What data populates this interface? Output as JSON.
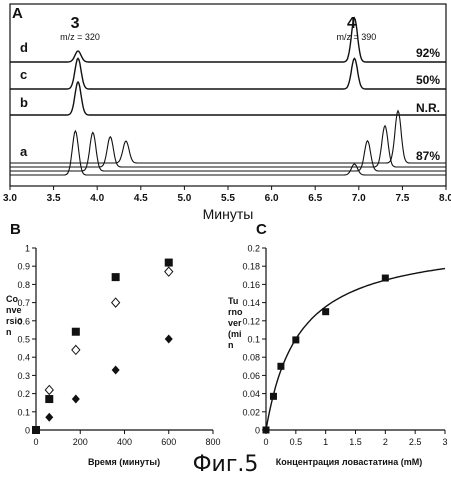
{
  "figure_caption": "Фиг.5",
  "chart_data": [
    {
      "panel": "A",
      "type": "line",
      "xlabel": "Минуты",
      "xlim": [
        3.0,
        8.0
      ],
      "x_ticks": [
        "3.0",
        "3.5",
        "4.0",
        "4.5",
        "5.0",
        "5.5",
        "6.0",
        "6.5",
        "7.0",
        "7.5",
        "8.0"
      ],
      "peak_labels": [
        {
          "label": "3",
          "mz": "m/z = 320",
          "x": 3.78
        },
        {
          "label": "4",
          "mz": "m/z = 390",
          "x": 6.95
        }
      ],
      "traces": [
        {
          "label": "d",
          "conversion": "92%",
          "peaks": [
            {
              "x": 3.78,
              "h": 0.25
            },
            {
              "x": 6.95,
              "h": 1.0
            }
          ]
        },
        {
          "label": "c",
          "conversion": "50%",
          "peaks": [
            {
              "x": 3.78,
              "h": 0.9
            },
            {
              "x": 6.95,
              "h": 0.9
            }
          ]
        },
        {
          "label": "b",
          "conversion": "N.R.",
          "peaks": [
            {
              "x": 3.78,
              "h": 1.0
            }
          ]
        },
        {
          "label": "a",
          "conversion": "87%",
          "peaks": [
            {
              "x": 3.75,
              "h": 0.8
            },
            {
              "x": 3.95,
              "h": 0.7
            },
            {
              "x": 4.15,
              "h": 0.55
            },
            {
              "x": 4.33,
              "h": 0.4
            },
            {
              "x": 6.95,
              "h": 0.2
            },
            {
              "x": 7.1,
              "h": 0.55
            },
            {
              "x": 7.3,
              "h": 0.75
            },
            {
              "x": 7.45,
              "h": 0.95
            }
          ]
        }
      ]
    },
    {
      "panel": "B",
      "type": "scatter",
      "ylabel": "Co nve rsio n",
      "xlabel": "Время (минуты)",
      "xlim": [
        0,
        800
      ],
      "ylim": [
        0,
        1
      ],
      "x_ticks": [
        "0",
        "200",
        "400",
        "600",
        "800"
      ],
      "y_ticks": [
        "0",
        "0.1",
        "0.2",
        "0.3",
        "0.4",
        "0.5",
        "0.6",
        "0.7",
        "0.8",
        "0.9",
        "1"
      ],
      "series": [
        {
          "marker": "square",
          "points": [
            [
              0,
              0.0
            ],
            [
              60,
              0.17
            ],
            [
              180,
              0.54
            ],
            [
              360,
              0.84
            ],
            [
              600,
              0.92
            ]
          ]
        },
        {
          "marker": "diamond-open",
          "points": [
            [
              60,
              0.22
            ],
            [
              180,
              0.44
            ],
            [
              360,
              0.7
            ],
            [
              600,
              0.87
            ]
          ]
        },
        {
          "marker": "diamond",
          "points": [
            [
              60,
              0.07
            ],
            [
              180,
              0.17
            ],
            [
              360,
              0.33
            ],
            [
              600,
              0.5
            ]
          ]
        }
      ]
    },
    {
      "panel": "C",
      "type": "scatter",
      "ylabel": "Tu rno ver (mi n",
      "xlabel": "Концентрация ловастатина (mM)",
      "xlim": [
        0,
        3
      ],
      "ylim": [
        0,
        0.2
      ],
      "x_ticks": [
        "0",
        "0.5",
        "1",
        "1.5",
        "2",
        "2.5",
        "3"
      ],
      "y_ticks": [
        "0",
        "0.02",
        "0.04",
        "0.06",
        "0.08",
        "0.1",
        "0.12",
        "0.14",
        "0.16",
        "0.18",
        "0.2"
      ],
      "points": [
        [
          0,
          0.0
        ],
        [
          0.125,
          0.037
        ],
        [
          0.25,
          0.07
        ],
        [
          0.5,
          0.099
        ],
        [
          1.0,
          0.13
        ],
        [
          2.0,
          0.167
        ]
      ],
      "fit": {
        "vmax": 0.21,
        "km": 0.55
      }
    }
  ]
}
